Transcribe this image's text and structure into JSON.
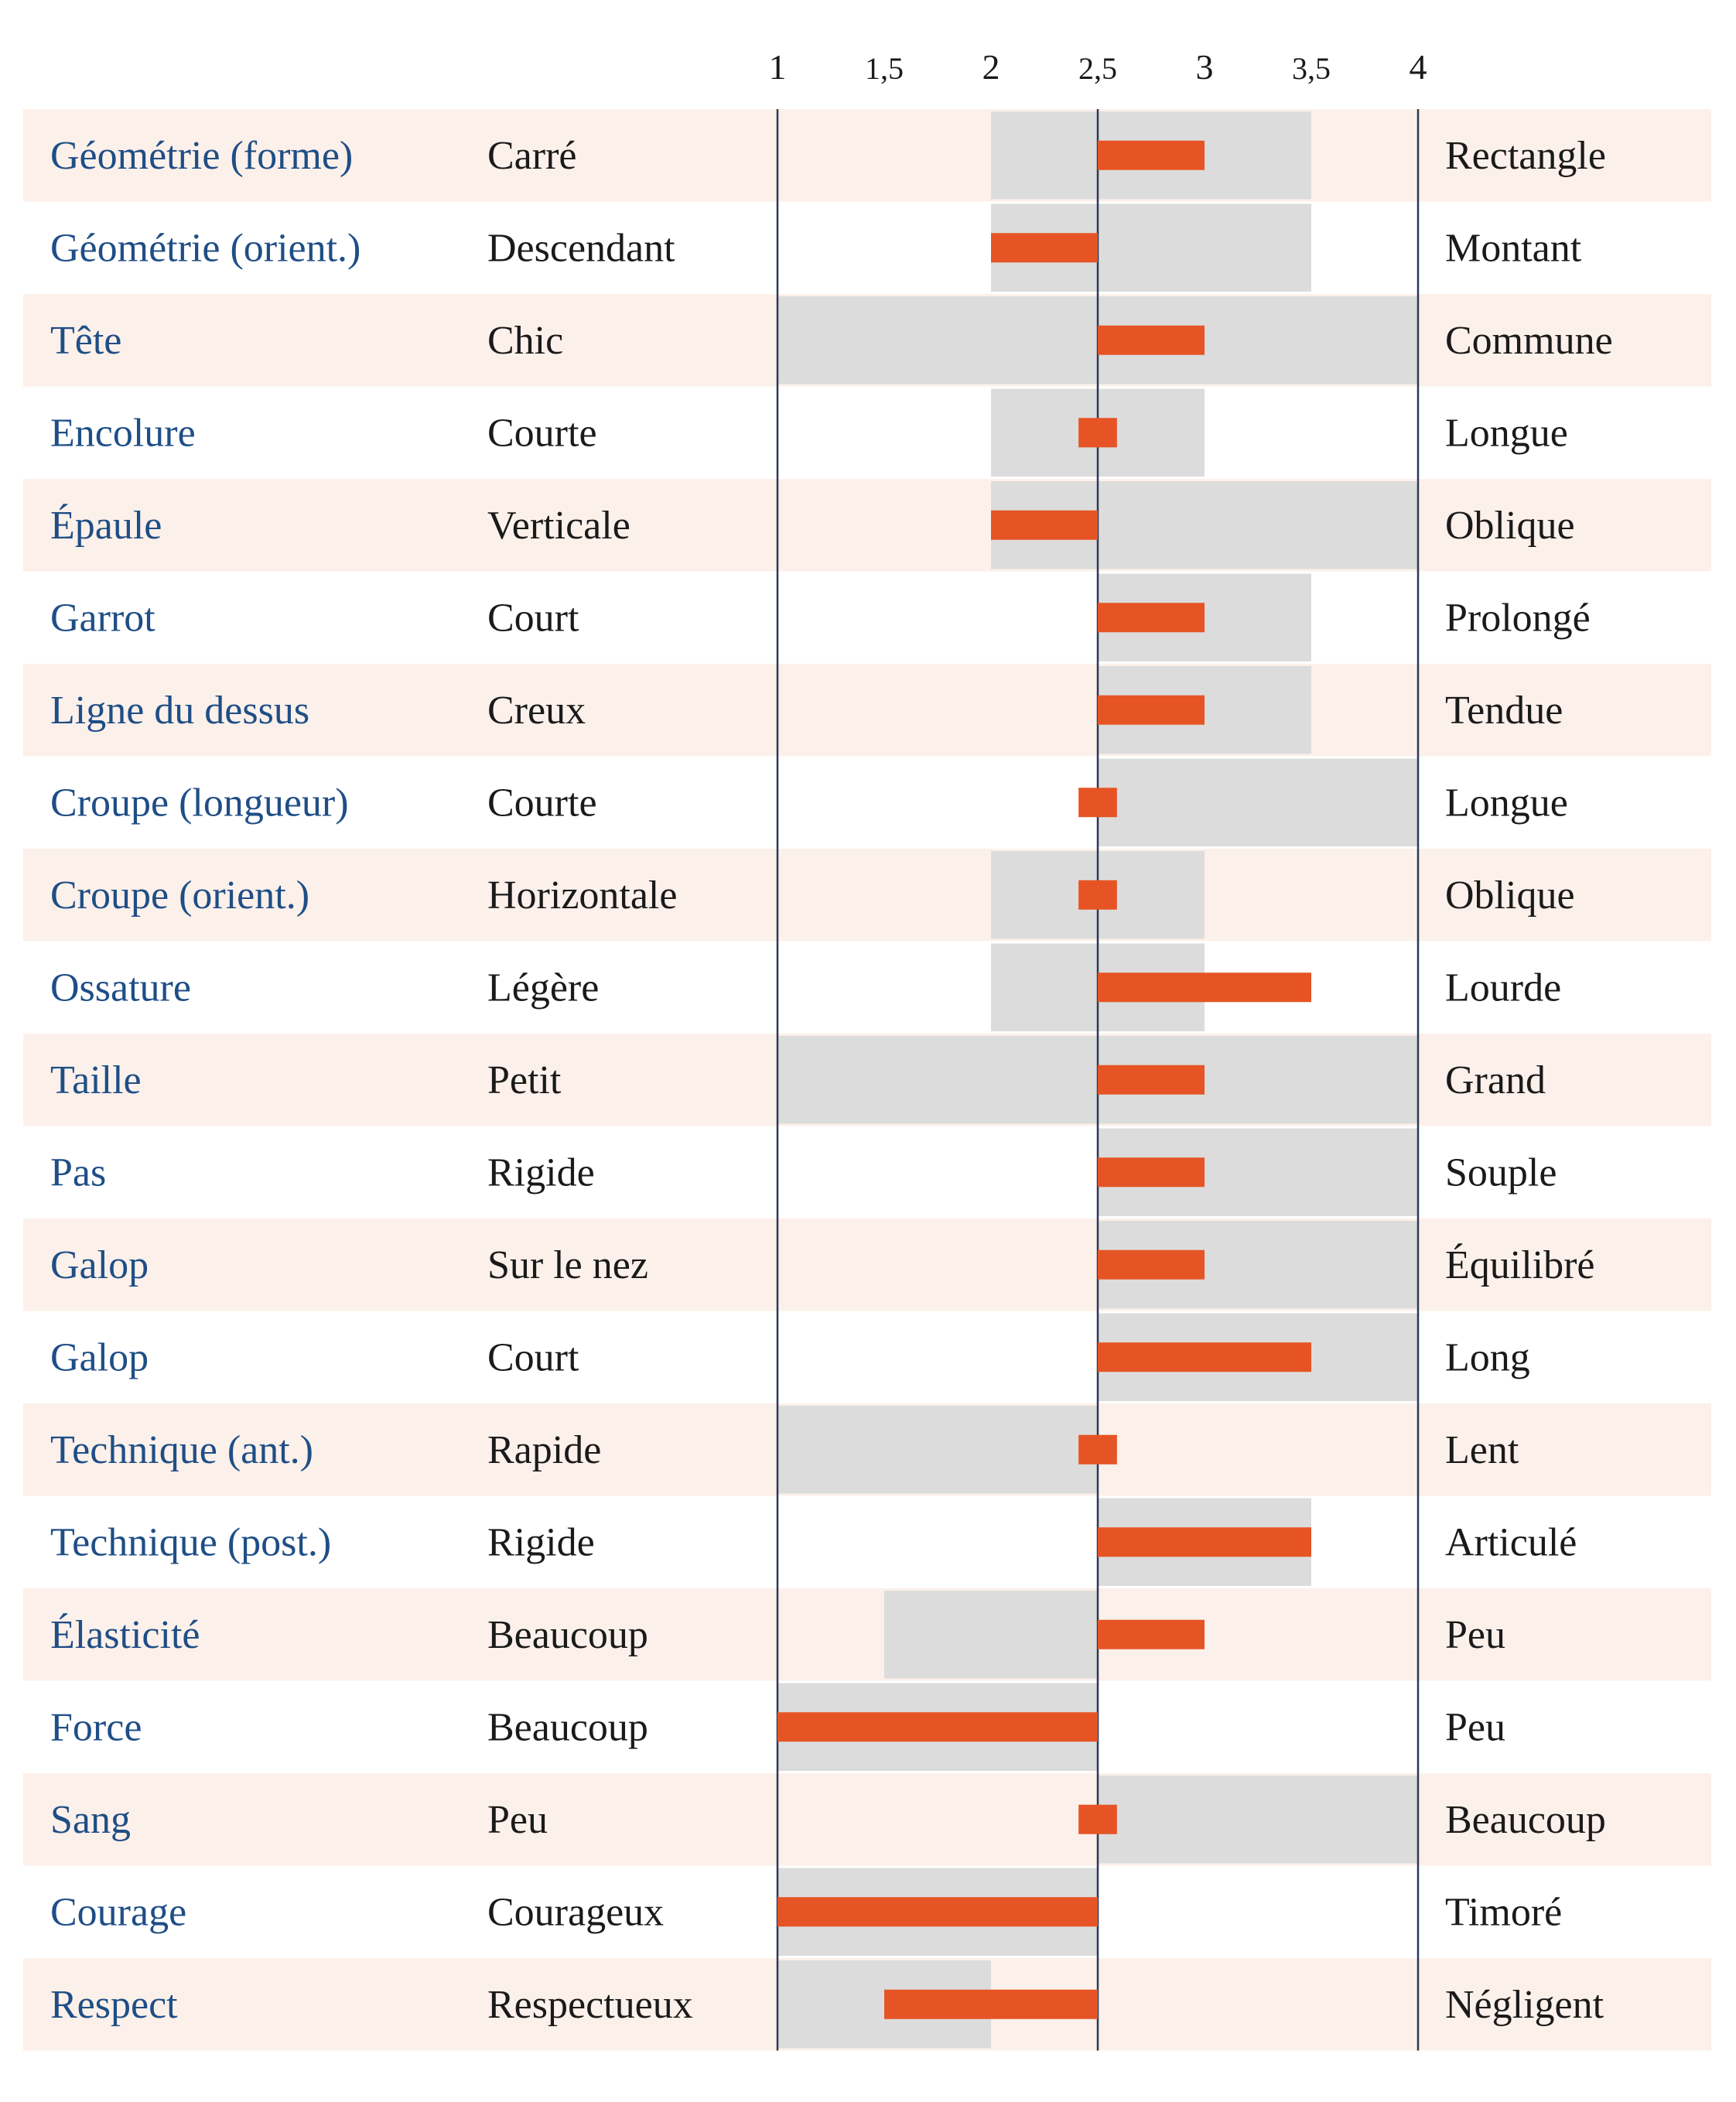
{
  "chart_data": {
    "type": "bar",
    "xlim": [
      1,
      4
    ],
    "center": 2.5,
    "ticks": [
      "1",
      "1,5",
      "2",
      "2,5",
      "3",
      "3,5",
      "4"
    ],
    "tick_values": [
      1,
      1.5,
      2,
      2.5,
      3,
      3.5,
      4
    ],
    "colors": {
      "stripe": "#fcf0ea",
      "range": "#dcdcdc",
      "bar": "#e65425",
      "axis": "#2a3a55",
      "trait_text": "#1f4e86",
      "pole_text": "#1a1a1a"
    },
    "rows": [
      {
        "trait": "Géométrie (forme)",
        "left": "Carré",
        "right": "Rectangle",
        "range": [
          2,
          3.5
        ],
        "value": 3
      },
      {
        "trait": "Géométrie (orient.)",
        "left": "Descendant",
        "right": "Montant",
        "range": [
          2,
          3.5
        ],
        "value": 2
      },
      {
        "trait": "Tête",
        "left": "Chic",
        "right": "Commune",
        "range": [
          1,
          4
        ],
        "value": 3
      },
      {
        "trait": "Encolure",
        "left": "Courte",
        "right": "Longue",
        "range": [
          2,
          3
        ],
        "value": 2.5
      },
      {
        "trait": "Épaule",
        "left": "Verticale",
        "right": "Oblique",
        "range": [
          2,
          4
        ],
        "value": 2
      },
      {
        "trait": "Garrot",
        "left": "Court",
        "right": "Prolongé",
        "range": [
          2.5,
          3.5
        ],
        "value": 3
      },
      {
        "trait": "Ligne du dessus",
        "left": "Creux",
        "right": "Tendue",
        "range": [
          2.5,
          3.5
        ],
        "value": 3
      },
      {
        "trait": "Croupe (longueur)",
        "left": "Courte",
        "right": "Longue",
        "range": [
          2.5,
          4
        ],
        "value": 2.5
      },
      {
        "trait": "Croupe (orient.)",
        "left": "Horizontale",
        "right": "Oblique",
        "range": [
          2,
          3
        ],
        "value": 2.5
      },
      {
        "trait": "Ossature",
        "left": "Légère",
        "right": "Lourde",
        "range": [
          2,
          3
        ],
        "value": 3.5
      },
      {
        "trait": "Taille",
        "left": "Petit",
        "right": "Grand",
        "range": [
          1,
          4
        ],
        "value": 3
      },
      {
        "trait": "Pas",
        "left": "Rigide",
        "right": "Souple",
        "range": [
          2.5,
          4
        ],
        "value": 3
      },
      {
        "trait": "Galop",
        "left": "Sur le nez",
        "right": "Équilibré",
        "range": [
          2.5,
          4
        ],
        "value": 3
      },
      {
        "trait": "Galop",
        "left": "Court",
        "right": "Long",
        "range": [
          2.5,
          4
        ],
        "value": 3.5
      },
      {
        "trait": "Technique (ant.)",
        "left": "Rapide",
        "right": "Lent",
        "range": [
          1,
          2.5
        ],
        "value": 2.5
      },
      {
        "trait": "Technique (post.)",
        "left": "Rigide",
        "right": "Articulé",
        "range": [
          2.5,
          3.5
        ],
        "value": 3.5
      },
      {
        "trait": "Élasticité",
        "left": "Beaucoup",
        "right": "Peu",
        "range": [
          1.5,
          2.5
        ],
        "value": 3
      },
      {
        "trait": "Force",
        "left": "Beaucoup",
        "right": "Peu",
        "range": [
          1,
          2.5
        ],
        "value": 1
      },
      {
        "trait": "Sang",
        "left": "Peu",
        "right": "Beaucoup",
        "range": [
          2.5,
          4
        ],
        "value": 2.5
      },
      {
        "trait": "Courage",
        "left": "Courageux",
        "right": "Timoré",
        "range": [
          1,
          2.5
        ],
        "value": 1
      },
      {
        "trait": "Respect",
        "left": "Respectueux",
        "right": "Négligent",
        "range": [
          1,
          2
        ],
        "value": 1.5
      }
    ]
  }
}
